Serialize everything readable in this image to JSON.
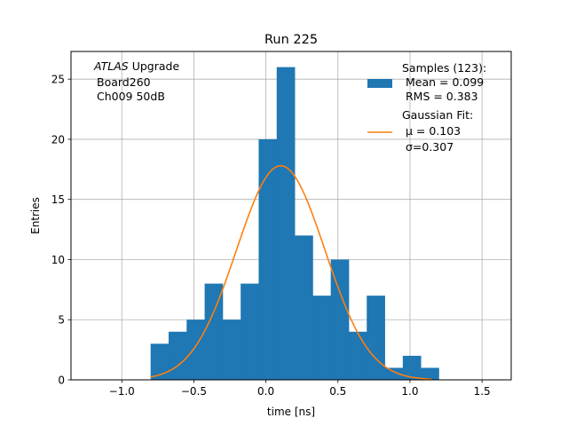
{
  "chart_data": {
    "type": "bar",
    "title": "Run 225",
    "xlabel": "time [ns]",
    "ylabel": "Entries",
    "xlim": [
      -1.3525,
      1.7025
    ],
    "ylim": [
      0,
      27.3
    ],
    "grid": true,
    "xticks": [
      -1.0,
      -0.5,
      0.0,
      0.5,
      1.0,
      1.5
    ],
    "xtick_labels": [
      "−1.0",
      "−0.5",
      "0.0",
      "0.5",
      "1.0",
      "1.5"
    ],
    "yticks": [
      0,
      5,
      10,
      15,
      20,
      25
    ],
    "ytick_labels": [
      "0",
      "5",
      "10",
      "15",
      "20",
      "25"
    ],
    "annotation": {
      "line1_italic": "ATLAS",
      "line1_rest": " Upgrade",
      "line2": "Board260",
      "line3": "Ch009 50dB"
    },
    "legend_position": "top-right",
    "series": [
      {
        "name": "Samples (123):",
        "kind": "histogram",
        "color": "#1f77b4",
        "legend_lines": [
          "Samples (123):",
          " Mean = 0.099",
          " RMS = 0.383"
        ],
        "bin_edges": [
          -0.8,
          -0.675,
          -0.55,
          -0.425,
          -0.3,
          -0.175,
          -0.05,
          0.075,
          0.2,
          0.325,
          0.45,
          0.575,
          0.7,
          0.825,
          0.95,
          1.075,
          1.2
        ],
        "counts": [
          3,
          4,
          5,
          8,
          5,
          8,
          20,
          26,
          12,
          7,
          10,
          4,
          7,
          1,
          2,
          1
        ]
      },
      {
        "name": "Gaussian Fit:",
        "kind": "line",
        "color": "#ff7f0e",
        "legend_lines": [
          "Gaussian Fit:",
          " μ = 0.103",
          " σ=0.307"
        ],
        "mu": 0.103,
        "sigma": 0.307,
        "amplitude": 17.8,
        "x_range": [
          -0.8,
          1.15
        ]
      }
    ]
  }
}
